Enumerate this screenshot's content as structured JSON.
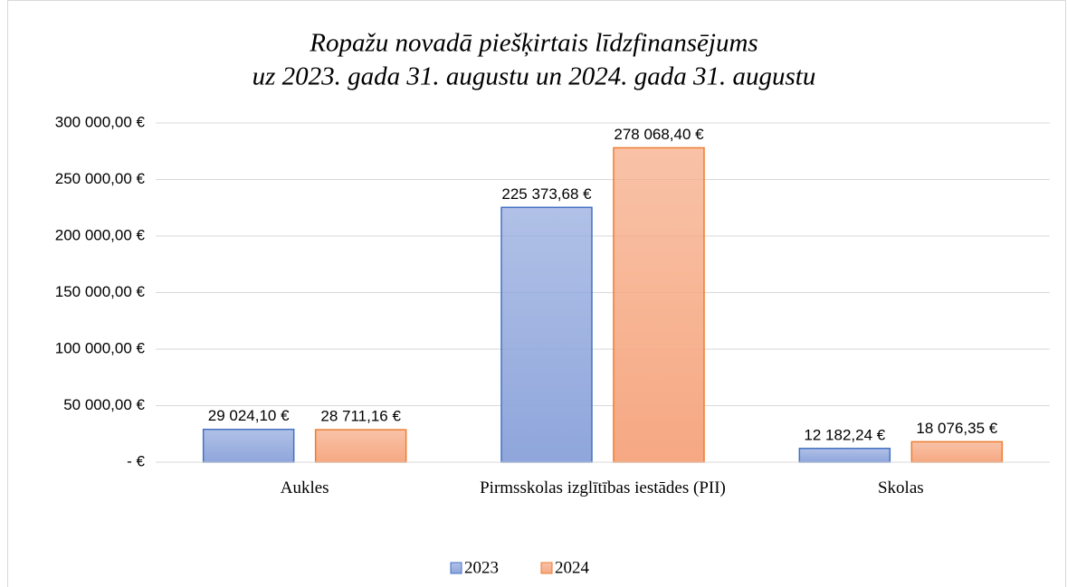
{
  "chart_data": {
    "type": "bar",
    "title": [
      "Ropažu novadā piešķirtais līdzfinansējums",
      "uz 2023. gada 31. augustu un 2024. gada 31. augustu"
    ],
    "categories": [
      "Aukles",
      "Pirmsskolas izglītības iestādes (PII)",
      "Skolas"
    ],
    "series": [
      {
        "name": "2023",
        "color": "#8fa6dc",
        "edge": "#4472c4",
        "values": [
          29024.1,
          225373.68,
          12182.24
        ],
        "value_labels": [
          "29 024,10 €",
          "225 373,68 €",
          "12 182,24 €"
        ]
      },
      {
        "name": "2024",
        "color": "#f6a882",
        "edge": "#ed7d31",
        "values": [
          28711.16,
          278068.4,
          18076.35
        ],
        "value_labels": [
          "28 711,16 €",
          "278 068,40 €",
          "18 076,35 €"
        ]
      }
    ],
    "ylim": [
      0,
      300000
    ],
    "yticks": [
      {
        "value": 0,
        "label": "-  €"
      },
      {
        "value": 50000,
        "label": "50 000,00 €"
      },
      {
        "value": 100000,
        "label": "100 000,00 €"
      },
      {
        "value": 150000,
        "label": "150 000,00 €"
      },
      {
        "value": 200000,
        "label": "200 000,00 €"
      },
      {
        "value": 250000,
        "label": "250 000,00 €"
      },
      {
        "value": 300000,
        "label": "300 000,00 €"
      }
    ],
    "grid": true,
    "legend": "bottom"
  }
}
